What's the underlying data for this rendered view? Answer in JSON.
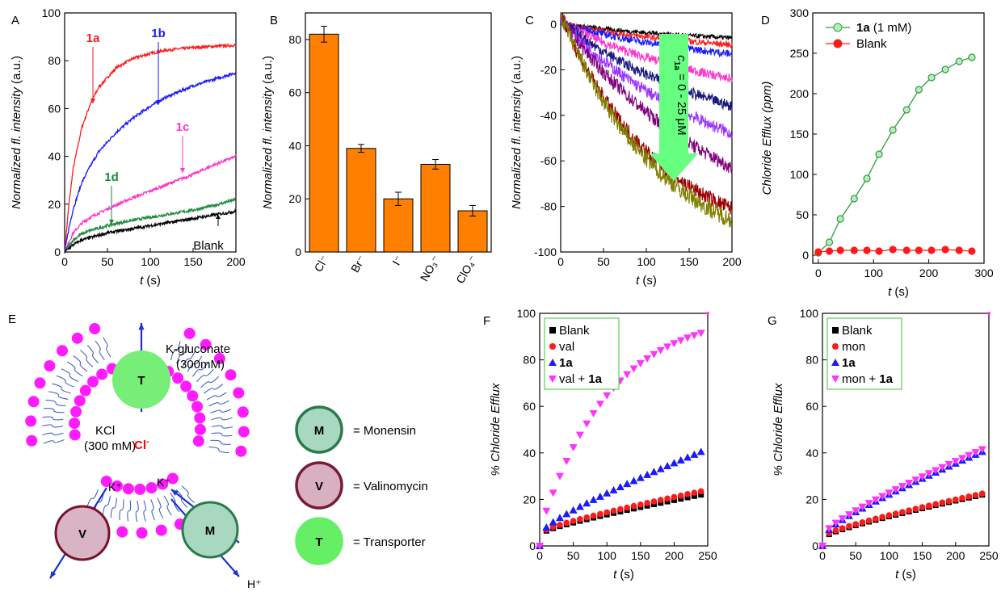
{
  "chart_data": [
    {
      "panel": "A",
      "type": "line",
      "xlabel": "t (s)",
      "ylabel": "Normalized fl. intensity (a.u.)",
      "xlim": [
        0,
        200
      ],
      "ylim": [
        0,
        100
      ],
      "xticks": [
        0,
        50,
        100,
        150,
        200
      ],
      "yticks": [
        0,
        20,
        40,
        60,
        80,
        100
      ],
      "series": [
        {
          "name": "1a",
          "color": "#ff1a1a",
          "x": [
            0,
            5,
            10,
            20,
            30,
            40,
            60,
            80,
            100,
            120,
            150,
            200
          ],
          "y": [
            0,
            20,
            35,
            52,
            62,
            69,
            77,
            81,
            83,
            84.5,
            85.5,
            86.5
          ]
        },
        {
          "name": "1b",
          "color": "#1a1aff",
          "x": [
            0,
            5,
            10,
            20,
            30,
            40,
            60,
            80,
            100,
            120,
            150,
            200
          ],
          "y": [
            0,
            10,
            18,
            29,
            36,
            42,
            50,
            56,
            61,
            65,
            69.5,
            75
          ]
        },
        {
          "name": "1c",
          "color": "#ff33cc",
          "x": [
            0,
            10,
            20,
            30,
            50,
            75,
            100,
            125,
            150,
            175,
            200
          ],
          "y": [
            0,
            8,
            12,
            14.5,
            18,
            22,
            25.5,
            29,
            32.5,
            36.5,
            40
          ]
        },
        {
          "name": "1d",
          "color": "#1a8a3a",
          "x": [
            0,
            10,
            20,
            30,
            50,
            75,
            100,
            125,
            150,
            175,
            200
          ],
          "y": [
            0,
            5,
            7.5,
            9,
            11,
            13,
            14.5,
            16,
            17.5,
            19.5,
            22
          ]
        },
        {
          "name": "Blank",
          "color": "#000000",
          "x": [
            0,
            10,
            20,
            30,
            50,
            75,
            100,
            125,
            150,
            175,
            200
          ],
          "y": [
            0,
            3,
            5,
            6,
            8,
            9.5,
            11,
            12.5,
            14,
            15.5,
            17
          ]
        }
      ],
      "annotations": [
        {
          "text": "1a",
          "color": "#ff1a1a"
        },
        {
          "text": "1b",
          "color": "#1a1aff"
        },
        {
          "text": "1c",
          "color": "#ff33cc"
        },
        {
          "text": "1d",
          "color": "#1a8a3a"
        },
        {
          "text": "Blank",
          "color": "#000000"
        }
      ]
    },
    {
      "panel": "B",
      "type": "bar",
      "ylabel": "Normalized fl. intensity (a.u.)",
      "ylim": [
        0,
        90
      ],
      "yticks": [
        0,
        20,
        40,
        60,
        80
      ],
      "categories": [
        "Cl⁻",
        "Br⁻",
        "I⁻",
        "NO₃⁻",
        "ClO₄⁻"
      ],
      "values": [
        82,
        39,
        20,
        33,
        15.5
      ],
      "errors": [
        3,
        1.5,
        2.5,
        1.8,
        2
      ],
      "bar_color": "#ff8000"
    },
    {
      "panel": "C",
      "type": "line",
      "xlabel": "t (s)",
      "ylabel": "Normalized fl. intensity (a.u.)",
      "xlim": [
        0,
        200
      ],
      "ylim": [
        -100,
        5
      ],
      "xticks": [
        0,
        50,
        100,
        150,
        200
      ],
      "yticks": [
        0,
        -20,
        -40,
        -60,
        -80,
        -100
      ],
      "series": [
        {
          "color": "#000000",
          "end": -6
        },
        {
          "color": "#ff1a1a",
          "end": -9
        },
        {
          "color": "#1a1aff",
          "end": -13
        },
        {
          "color": "#ff33cc",
          "end": -24
        },
        {
          "color": "#1a1a80",
          "end": -36
        },
        {
          "color": "#9933ff",
          "end": -48
        },
        {
          "color": "#800080",
          "end": -63
        },
        {
          "color": "#990000",
          "end": -81
        },
        {
          "color": "#808000",
          "end": -86
        }
      ],
      "arrow_label_main": "c",
      "arrow_label_sub": "1a",
      "arrow_label_rest": " = 0 - 25 μM",
      "arrow_color": "#66ff80"
    },
    {
      "panel": "D",
      "type": "line",
      "xlabel": "t (s)",
      "ylabel": "Chloride Efflux (ppm)",
      "xlim": [
        -10,
        300
      ],
      "ylim": [
        -10,
        300
      ],
      "xticks": [
        0,
        100,
        200,
        300
      ],
      "yticks": [
        0,
        50,
        100,
        150,
        200,
        250,
        300
      ],
      "legend": "top-left",
      "series": [
        {
          "name": "1a (1 mM)",
          "color": "#2e9e3e",
          "x": [
            0,
            20,
            40,
            65,
            88,
            110,
            135,
            160,
            182,
            205,
            230,
            255,
            278
          ],
          "y": [
            3,
            16,
            45,
            70,
            95,
            125,
            155,
            180,
            205,
            220,
            230,
            240,
            245
          ]
        },
        {
          "name": "Blank",
          "color": "#ff1a1a",
          "x": [
            0,
            20,
            40,
            65,
            88,
            110,
            135,
            160,
            182,
            205,
            230,
            255,
            278
          ],
          "y": [
            4,
            5,
            6,
            6,
            6,
            5,
            7,
            6,
            6,
            6,
            7,
            6,
            5
          ]
        }
      ]
    },
    {
      "panel": "F",
      "type": "scatter",
      "xlabel": "t (s)",
      "ylabel": "% Chloride Efflux",
      "xlim": [
        0,
        250
      ],
      "ylim": [
        0,
        100
      ],
      "xticks": [
        0,
        50,
        100,
        150,
        200,
        250
      ],
      "yticks": [
        0,
        20,
        40,
        60,
        80,
        100
      ],
      "legend": "top-left",
      "series": [
        {
          "name": "Blank",
          "color": "#000000",
          "marker": "square",
          "final": 22,
          "init": 6.5
        },
        {
          "name": "val",
          "color": "#ff1a1a",
          "marker": "circle",
          "final": 23.5,
          "init": 7
        },
        {
          "name": "1a",
          "color": "#1a1aff",
          "marker": "triangle",
          "final": 40.5,
          "init": 8
        },
        {
          "name": "val + 1a",
          "color": "#ff33ff",
          "marker": "triangle-down",
          "final": 91.5,
          "init": 15
        }
      ]
    },
    {
      "panel": "G",
      "type": "scatter",
      "xlabel": "t (s)",
      "ylabel": "% Chloride Efflux",
      "xlim": [
        0,
        250
      ],
      "ylim": [
        0,
        100
      ],
      "xticks": [
        0,
        50,
        100,
        150,
        200,
        250
      ],
      "yticks": [
        0,
        20,
        40,
        60,
        80,
        100
      ],
      "legend": "top-left",
      "series": [
        {
          "name": "Blank",
          "color": "#000000",
          "marker": "square",
          "final": 22,
          "init": 5
        },
        {
          "name": "mon",
          "color": "#ff1a1a",
          "marker": "circle",
          "final": 22.5,
          "init": 5.5
        },
        {
          "name": "1a",
          "color": "#1a1aff",
          "marker": "triangle",
          "final": 40.5,
          "init": 7
        },
        {
          "name": "mon + 1a",
          "color": "#ff33ff",
          "marker": "triangle-down",
          "final": 41.5,
          "init": 7.5
        }
      ]
    }
  ],
  "panels": {
    "A": "A",
    "B": "B",
    "C": "C",
    "D": "D",
    "E": "E",
    "F": "F",
    "G": "G"
  },
  "schematic": {
    "outside_label": "K-gluconate",
    "outside_conc": "(300mM)",
    "inside_label": "KCl",
    "inside_conc": "(300 mM)",
    "anion": "Cl",
    "ion_k1": "K⁺",
    "ion_k2": "K⁺",
    "ion_h": "H⁺",
    "carrier_T": "T",
    "carrier_V": "V",
    "carrier_M": "M",
    "legend": [
      {
        "symbol": "M",
        "text": "= Monensin",
        "fill": "#a8d8c0",
        "stroke": "#2a7a4a"
      },
      {
        "symbol": "V",
        "text": "= Valinomycin",
        "fill": "#d8b0c0",
        "stroke": "#7a1a3a"
      },
      {
        "symbol": "T",
        "text": "= Transporter",
        "fill": "#66ee66",
        "stroke": "#66ee66"
      }
    ],
    "colors": {
      "lipid": "#ff1aff",
      "tail": "#3355bb",
      "arrow": "#1a33cc",
      "anion": "#ff0000"
    }
  }
}
